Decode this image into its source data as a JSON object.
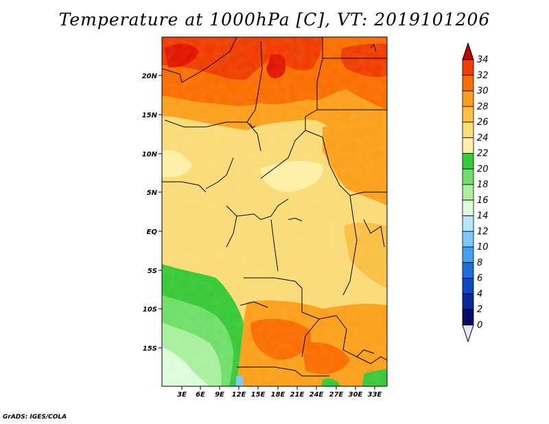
{
  "title": "Temperature at 1000hPa [C], VT: 2019101206",
  "credit": "GrADS: IGES/COLA",
  "map": {
    "lat_ticks": [
      "20N",
      "15N",
      "10N",
      "5N",
      "EQ",
      "5S",
      "10S",
      "15S"
    ],
    "lon_ticks": [
      "3E",
      "6E",
      "9E",
      "12E",
      "15E",
      "18E",
      "21E",
      "24E",
      "27E",
      "30E",
      "33E"
    ]
  },
  "legend": {
    "labels": [
      "34",
      "32",
      "30",
      "28",
      "26",
      "24",
      "22",
      "20",
      "18",
      "16",
      "14",
      "12",
      "10",
      "8",
      "6",
      "4",
      "2",
      "0"
    ],
    "colors": [
      "#e11400",
      "#f03c00",
      "#fa6e00",
      "#fca01c",
      "#fac044",
      "#fadc78",
      "#fff0a8",
      "#36c93a",
      "#6ee06a",
      "#a8f0a0",
      "#dcfcdc",
      "#b4e6fa",
      "#7cc8fa",
      "#46a0f0",
      "#1e6ee0",
      "#0a48c8",
      "#0a28a0",
      "#0a0a6a"
    ],
    "over_color": "#c80000",
    "under_color": "#e6e6fa"
  }
}
